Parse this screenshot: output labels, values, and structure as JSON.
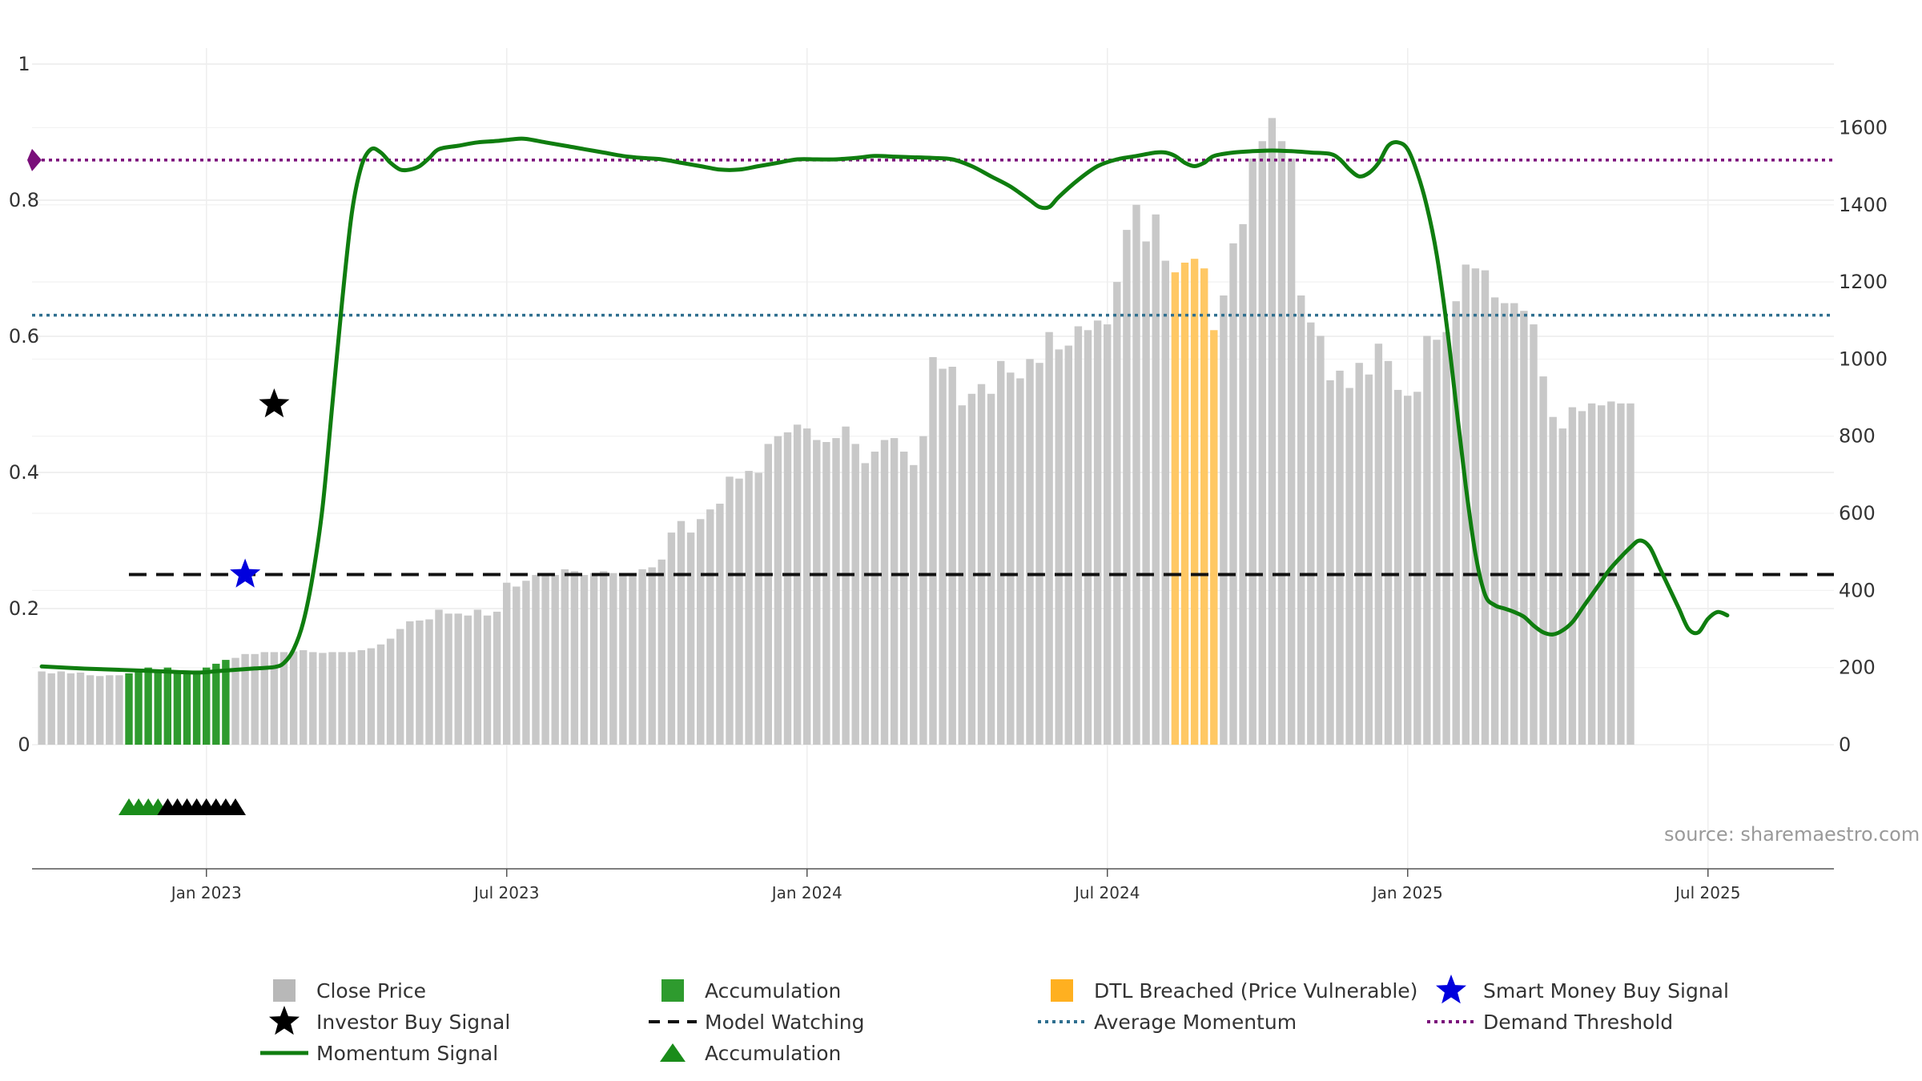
{
  "chart_data": {
    "type": "bar",
    "title": "",
    "source": "source: sharemaestro.com",
    "colors": {
      "close_price": "#c8c8c8",
      "accumulation_bar": "#2e9b2e",
      "dtl_breached": "#ffc864",
      "momentum": "#0f7d0f",
      "model_watching": "#111111",
      "average_momentum": "#2f6f8f",
      "demand_threshold": "#7a0f7a",
      "smart_money": "#0000dd",
      "investor_buy": "#000000",
      "accumulation_marker": "#1a8c1a"
    },
    "left_axis": {
      "range": [
        0,
        1
      ],
      "ticks": [
        0,
        0.2,
        0.4,
        0.6,
        0.8,
        1
      ],
      "tick_labels": [
        "0",
        "0.2",
        "0.4",
        "0.6",
        "0.8",
        "1"
      ]
    },
    "right_axis": {
      "range": [
        0,
        1765
      ],
      "ticks": [
        0,
        200,
        400,
        600,
        800,
        1000,
        1200,
        1400,
        1600
      ],
      "tick_labels": [
        "0",
        "200",
        "400",
        "600",
        "800",
        "1000",
        "1200",
        "1400",
        "1600"
      ]
    },
    "x_axis": {
      "range_weeks": [
        -18,
        168
      ],
      "ticks": [
        0,
        31,
        62,
        93,
        124,
        155
      ],
      "tick_labels": [
        "Jan 2023",
        "Jul 2023",
        "Jan 2024",
        "Jul 2024",
        "Jan 2025",
        "Jul 2025"
      ]
    },
    "close_price": [
      190,
      185,
      190,
      185,
      187,
      180,
      178,
      180,
      180,
      185,
      190,
      200,
      195,
      200,
      185,
      190,
      190,
      200,
      210,
      220,
      225,
      235,
      235,
      240,
      240,
      240,
      242,
      245,
      240,
      238,
      240,
      240,
      240,
      245,
      250,
      260,
      275,
      300,
      320,
      322,
      325,
      350,
      340,
      340,
      335,
      350,
      335,
      345,
      420,
      410,
      425,
      440,
      440,
      440,
      455,
      450,
      440,
      445,
      450,
      445,
      445,
      445,
      455,
      460,
      480,
      550,
      580,
      550,
      585,
      610,
      625,
      695,
      690,
      710,
      705,
      780,
      800,
      810,
      830,
      820,
      790,
      785,
      795,
      825,
      780,
      730,
      760,
      790,
      795,
      760,
      725,
      800,
      1005,
      975,
      980,
      880,
      910,
      935,
      910,
      995,
      965,
      950,
      1000,
      990,
      1070,
      1025,
      1035,
      1085,
      1075,
      1100,
      1090,
      1200,
      1335,
      1400,
      1305,
      1375,
      1255,
      1225,
      1250,
      1260,
      1235,
      1075,
      1165,
      1300,
      1350,
      1520,
      1565,
      1625,
      1565,
      1520,
      1165,
      1095,
      1060,
      945,
      970,
      925,
      990,
      960,
      1040,
      995,
      920,
      905,
      915,
      1060,
      1050,
      1070,
      1150,
      1245,
      1235,
      1230,
      1160,
      1145,
      1145,
      1125,
      1090,
      955,
      850,
      820,
      875,
      865,
      885,
      880,
      890,
      885,
      885
    ],
    "accumulation_range": [
      9,
      19
    ],
    "dtl_breached_range": [
      117,
      121
    ],
    "momentum": [
      0.115,
      0.112,
      0.11,
      0.108,
      0.106,
      0.108,
      0.11,
      0.112,
      0.114,
      0.12,
      0.14,
      0.18,
      0.25,
      0.35,
      0.5,
      0.65,
      0.78,
      0.85,
      0.875,
      0.87,
      0.855,
      0.845,
      0.845,
      0.85,
      0.862,
      0.875,
      0.88,
      0.885,
      0.887,
      0.89,
      0.89,
      0.885,
      0.88,
      0.875,
      0.87,
      0.865,
      0.862,
      0.86,
      0.855,
      0.85,
      0.845,
      0.845,
      0.85,
      0.855,
      0.86,
      0.86,
      0.86,
      0.862,
      0.865,
      0.864,
      0.863,
      0.862,
      0.86,
      0.85,
      0.835,
      0.82,
      0.8,
      0.79,
      0.79,
      0.805,
      0.83,
      0.85,
      0.86,
      0.865,
      0.87,
      0.87,
      0.865,
      0.855,
      0.85,
      0.855,
      0.865,
      0.87,
      0.872,
      0.873,
      0.872,
      0.87,
      0.868,
      0.86,
      0.845,
      0.835,
      0.84,
      0.855,
      0.88,
      0.885,
      0.875,
      0.84,
      0.79,
      0.72,
      0.62,
      0.5,
      0.38,
      0.28,
      0.22,
      0.205,
      0.2,
      0.195,
      0.188,
      0.175,
      0.165,
      0.162,
      0.168,
      0.18,
      0.2,
      0.22,
      0.24,
      0.26,
      0.29,
      0.3,
      0.29,
      0.26,
      0.23,
      0.2,
      0.17,
      0.165,
      0.185,
      0.195,
      0.19
    ],
    "momentum_weeks": [
      -17,
      -13,
      -9,
      -5,
      -1,
      1,
      3,
      5,
      7,
      8,
      9,
      10,
      11,
      12,
      13,
      14,
      15,
      16,
      17,
      18,
      19,
      20,
      21,
      22,
      23,
      24,
      26,
      28,
      30,
      32,
      33,
      35,
      37,
      39,
      41,
      43,
      45,
      47,
      49,
      51,
      53,
      55,
      57,
      59,
      61,
      63,
      65,
      67,
      69,
      71,
      73,
      75,
      77,
      79,
      81,
      83,
      85,
      86,
      87,
      88,
      90,
      92,
      94,
      96,
      98,
      99,
      100,
      101,
      102,
      103,
      104,
      106,
      108,
      110,
      112,
      114,
      116,
      117,
      118,
      119,
      120,
      121,
      122,
      123,
      124,
      125,
      126,
      127,
      128,
      129,
      130,
      131,
      132,
      133,
      134,
      135,
      136,
      137,
      138,
      139,
      140,
      141,
      142,
      143,
      144,
      145,
      147,
      148,
      149,
      150,
      151,
      152,
      153,
      154,
      155,
      156,
      157
    ],
    "model_watching": {
      "value": 0.25,
      "start_week": -8
    },
    "average_momentum": 0.631,
    "demand_threshold": 0.859,
    "smart_money_buy_signal": {
      "week": 4,
      "value": 0.25
    },
    "investor_buy_signal": {
      "week": 7,
      "value": 0.5
    },
    "accumulation_markers": [
      -8,
      -7,
      -6,
      -5,
      -4,
      -3,
      -2,
      -1,
      0,
      1,
      2,
      3
    ],
    "accumulation_marker_colors": [
      "green",
      "green",
      "green",
      "green",
      "black",
      "black",
      "black",
      "black",
      "black",
      "black",
      "black",
      "black"
    ],
    "legend": [
      {
        "label": "Close Price",
        "kind": "square",
        "color": "#b8b8b8"
      },
      {
        "label": "Accumulation",
        "kind": "square",
        "color": "#2e9b2e"
      },
      {
        "label": "DTL Breached (Price Vulnerable)",
        "kind": "square",
        "color": "#ffb020"
      },
      {
        "label": "Smart Money Buy Signal",
        "kind": "star",
        "color": "#0000dd"
      },
      {
        "label": "Investor Buy Signal",
        "kind": "star",
        "color": "#000000"
      },
      {
        "label": "Model Watching",
        "kind": "dash",
        "color": "#111111"
      },
      {
        "label": "Average Momentum",
        "kind": "dot",
        "color": "#2f6f8f"
      },
      {
        "label": "Demand Threshold",
        "kind": "dot",
        "color": "#7a0f7a"
      },
      {
        "label": "Momentum Signal",
        "kind": "line",
        "color": "#0f7d0f"
      },
      {
        "label": "Accumulation",
        "kind": "triangle",
        "color": "#1a8c1a"
      }
    ]
  }
}
